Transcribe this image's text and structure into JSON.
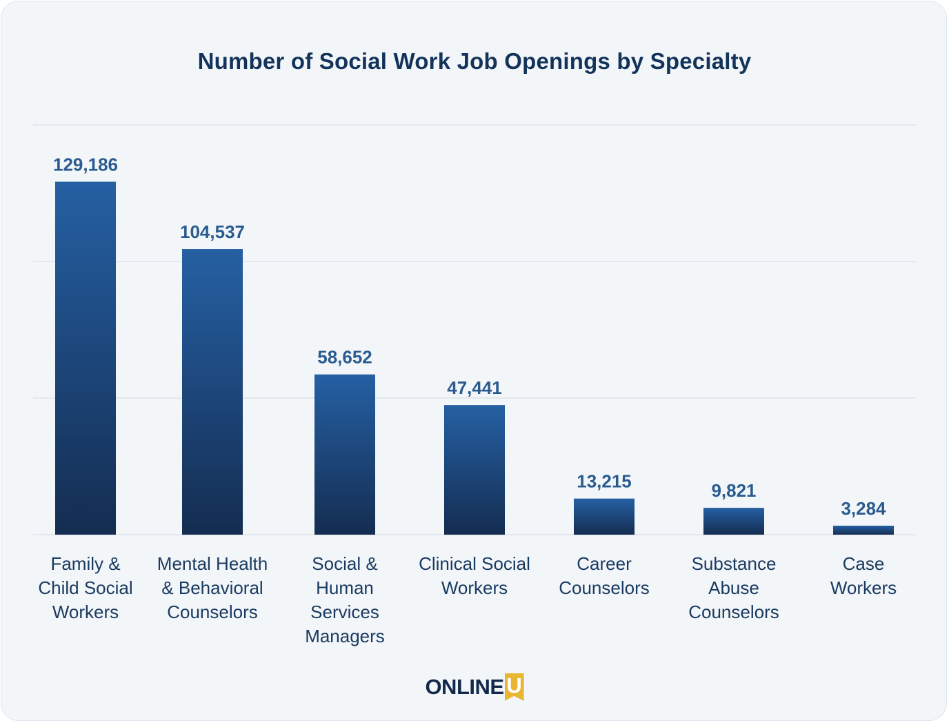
{
  "chart_data": {
    "type": "bar",
    "title": "Number of Social Work Job Openings by Specialty",
    "categories": [
      [
        "Family &",
        "Child Social",
        "Workers"
      ],
      [
        "Mental Health",
        "& Behavioral",
        "Counselors"
      ],
      [
        "Social &",
        "Human",
        "Services",
        "Managers"
      ],
      [
        "Clinical Social",
        "Workers"
      ],
      [
        "Career",
        "Counselors"
      ],
      [
        "Substance",
        "Abuse",
        "Counselors"
      ],
      [
        "Case",
        "Workers"
      ]
    ],
    "values": [
      129186,
      104537,
      58652,
      47441,
      13215,
      9821,
      3284
    ],
    "value_labels": [
      "129,186",
      "104,537",
      "58,652",
      "47,441",
      "13,215",
      "9,821",
      "3,284"
    ],
    "ylim": [
      0,
      150000
    ],
    "grid": true,
    "gridlines": [
      0,
      50000,
      100000,
      150000
    ],
    "colors": {
      "bar_top": "#2560a3",
      "bar_bottom": "#142d51",
      "value_label": "#2a5b8f",
      "grid": "#e3e8ee"
    }
  },
  "logo": {
    "text": "ONLINE",
    "badge": "U"
  }
}
